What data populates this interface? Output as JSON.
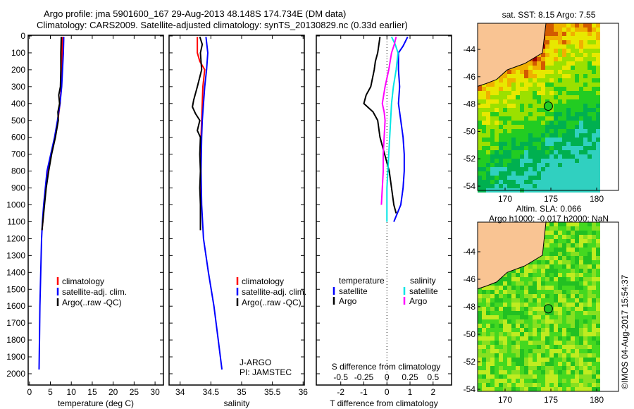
{
  "title": {
    "line1": "Argo profile: jma 5901600_167 29-Aug-2013 48.148S 174.734E (DM data)",
    "line2": "Climatology: CARS2009. Satellite-adjusted climatology: synTS_20130829.nc (0.33d earlier)"
  },
  "colors": {
    "climatology": "#ff0000",
    "satellite": "#0000ff",
    "argo": "#000000",
    "sal_satellite": "#00e5e5",
    "sal_argo": "#ff00ff"
  },
  "chart_data": [
    {
      "type": "line",
      "xlabel": "temperature (deg C)",
      "ylabel": "",
      "xlim": [
        -0.3,
        32
      ],
      "ylim": [
        2045,
        0
      ],
      "xticks": [
        "0",
        "5",
        "10",
        "15",
        "20",
        "25",
        "30"
      ],
      "xtickvals": [
        0,
        5,
        10,
        15,
        20,
        25,
        30
      ],
      "yticks": [
        "0",
        "100",
        "200",
        "300",
        "400",
        "500",
        "600",
        "700",
        "800",
        "900",
        "1000",
        "1100",
        "1200",
        "1300",
        "1400",
        "1500",
        "1600",
        "1700",
        "1800",
        "1900",
        "2000"
      ],
      "legend": [
        "climatology",
        "satellite-adj. clim.",
        "Argo(..raw -QC)"
      ],
      "series": [
        {
          "name": "climatology",
          "color": "#ff0000",
          "depth": [
            5,
            100,
            200,
            300,
            400,
            500,
            600,
            700,
            800,
            900,
            1000,
            1100,
            1150
          ],
          "values": [
            7.9,
            7.8,
            7.7,
            7.6,
            7.3,
            6.8,
            6.1,
            5.2,
            4.5,
            3.9,
            3.5,
            3.2,
            3.0
          ]
        },
        {
          "name": "satellite-adj. clim.",
          "color": "#0000ff",
          "depth": [
            5,
            100,
            200,
            300,
            400,
            500,
            600,
            700,
            800,
            900,
            1000,
            1100,
            1200,
            1400,
            1600,
            1800,
            1975
          ],
          "values": [
            8.2,
            8.1,
            7.9,
            7.7,
            7.3,
            6.7,
            6.0,
            5.1,
            4.2,
            3.8,
            3.4,
            3.1,
            2.9,
            2.7,
            2.5,
            2.4,
            2.3
          ]
        },
        {
          "name": "Argo(..raw -QC)",
          "color": "#000000",
          "depth": [
            5,
            100,
            200,
            300,
            350,
            400,
            450,
            500,
            600,
            700,
            800,
            900,
            1000,
            1100,
            1150
          ],
          "values": [
            7.6,
            7.5,
            7.5,
            7.4,
            7.0,
            7.2,
            6.8,
            6.9,
            6.2,
            5.3,
            4.6,
            4.0,
            3.6,
            3.2,
            3.0
          ]
        }
      ]
    },
    {
      "type": "line",
      "xlabel": "salinity",
      "ylabel": "",
      "xlim": [
        33.82,
        36.02
      ],
      "ylim": [
        2045,
        0
      ],
      "xticks": [
        "34",
        "34.5",
        "35",
        "35.5",
        "36"
      ],
      "xtickvals": [
        34,
        34.5,
        35,
        35.5,
        36
      ],
      "legend": [
        "climatology",
        "satellite-adj. clim.",
        "Argo(..raw -QC)"
      ],
      "annotation": [
        "J-ARGO",
        "PI: JAMSTEC"
      ],
      "series": [
        {
          "name": "climatology",
          "color": "#ff0000",
          "depth": [
            5,
            100,
            150,
            200,
            300,
            400,
            500,
            600,
            800,
            1000,
            1150
          ],
          "values": [
            34.28,
            34.28,
            34.32,
            34.4,
            34.37,
            34.36,
            34.35,
            34.34,
            34.33,
            34.33,
            34.33
          ]
        },
        {
          "name": "satellite-adj. clim.",
          "color": "#0000ff",
          "depth": [
            5,
            100,
            200,
            300,
            400,
            500,
            600,
            800,
            1000,
            1200,
            1400,
            1600,
            1800,
            1975
          ],
          "values": [
            34.42,
            34.45,
            34.43,
            34.4,
            34.38,
            34.36,
            34.35,
            34.34,
            34.35,
            34.38,
            34.46,
            34.55,
            34.62,
            34.68
          ]
        },
        {
          "name": "Argo(..raw -QC)",
          "color": "#000000",
          "depth": [
            5,
            50,
            100,
            200,
            300,
            380,
            420,
            460,
            500,
            560,
            600,
            700,
            800,
            900,
            1000,
            1100,
            1150
          ],
          "values": [
            34.32,
            34.36,
            34.33,
            34.35,
            34.28,
            34.22,
            34.2,
            34.25,
            34.32,
            34.28,
            34.33,
            34.32,
            34.33,
            34.32,
            34.33,
            34.33,
            34.33
          ]
        }
      ]
    },
    {
      "type": "line",
      "xlabel": "T difference from climatology",
      "x2label": "S difference from climatology",
      "xlim": [
        -3.06,
        2.8
      ],
      "ylim": [
        2045,
        0
      ],
      "xticks": [
        "-2",
        "-1",
        "0",
        "1",
        "2"
      ],
      "xtickvals": [
        -2,
        -1,
        0,
        1,
        2
      ],
      "x2ticks": [
        "-0.5",
        "-0.25",
        "0",
        "0.25",
        "0.5"
      ],
      "x2tickvals": [
        -0.5,
        -0.25,
        0,
        0.25,
        0.5
      ],
      "legend": {
        "temperature_header": "temperature",
        "salinity_header": "salinity",
        "items": [
          "satellite",
          "Argo",
          "satellite",
          "Argo"
        ]
      },
      "series": [
        {
          "name": "temperature satellite",
          "color": "#0000ff",
          "depth": [
            5,
            60,
            100,
            200,
            300,
            400,
            500,
            600,
            700,
            800,
            900,
            1000,
            1100
          ],
          "values": [
            0.9,
            0.7,
            0.5,
            0.5,
            0.55,
            0.5,
            0.6,
            0.7,
            0.75,
            0.75,
            0.7,
            0.6,
            0.3
          ]
        },
        {
          "name": "temperature Argo",
          "color": "#000000",
          "depth": [
            5,
            100,
            150,
            200,
            300,
            350,
            400,
            450,
            500,
            600,
            700,
            800,
            900,
            1000,
            1050
          ],
          "values": [
            -0.3,
            -0.4,
            -0.5,
            -0.55,
            -0.7,
            -0.9,
            -1.0,
            -0.6,
            -0.4,
            -0.3,
            -0.1,
            0.1,
            0.2,
            0.3,
            0.4
          ]
        },
        {
          "name": "salinity satellite",
          "color": "#00e5e5",
          "depth": [
            5,
            50,
            100,
            200,
            300,
            400,
            500,
            600,
            700,
            800,
            900,
            1000,
            1100
          ],
          "values": [
            0.05,
            0.09,
            0.12,
            0.1,
            0.07,
            0.05,
            0.04,
            0.03,
            0.02,
            0.01,
            0.0,
            0.0,
            0.0
          ]
        },
        {
          "name": "salinity Argo",
          "color": "#ff00ff",
          "depth": [
            5,
            50,
            100,
            200,
            300,
            400,
            450,
            500,
            600,
            700,
            800,
            900,
            1000
          ],
          "values": [
            0.1,
            0.08,
            0.05,
            0.02,
            -0.02,
            -0.05,
            -0.03,
            -0.02,
            -0.03,
            -0.04,
            -0.04,
            -0.05,
            -0.06
          ]
        }
      ]
    }
  ],
  "maps": [
    {
      "title": "sat. SST: 8.15 Argo: 7.55",
      "xticks": [
        "170",
        "175",
        "180"
      ],
      "yticks": [
        "-44",
        "-46",
        "-48",
        "-50",
        "-52",
        "-54"
      ]
    },
    {
      "title1": "Altim. SLA: 0.066",
      "title2": "Argo h1000: -0.017 h2000: NaN",
      "xticks": [
        "170",
        "175",
        "180"
      ],
      "yticks": [
        "-44",
        "-46",
        "-48",
        "-50",
        "-52",
        "-54"
      ]
    }
  ],
  "credit": "©IMOS 04-Aug-2017 15:54:37"
}
